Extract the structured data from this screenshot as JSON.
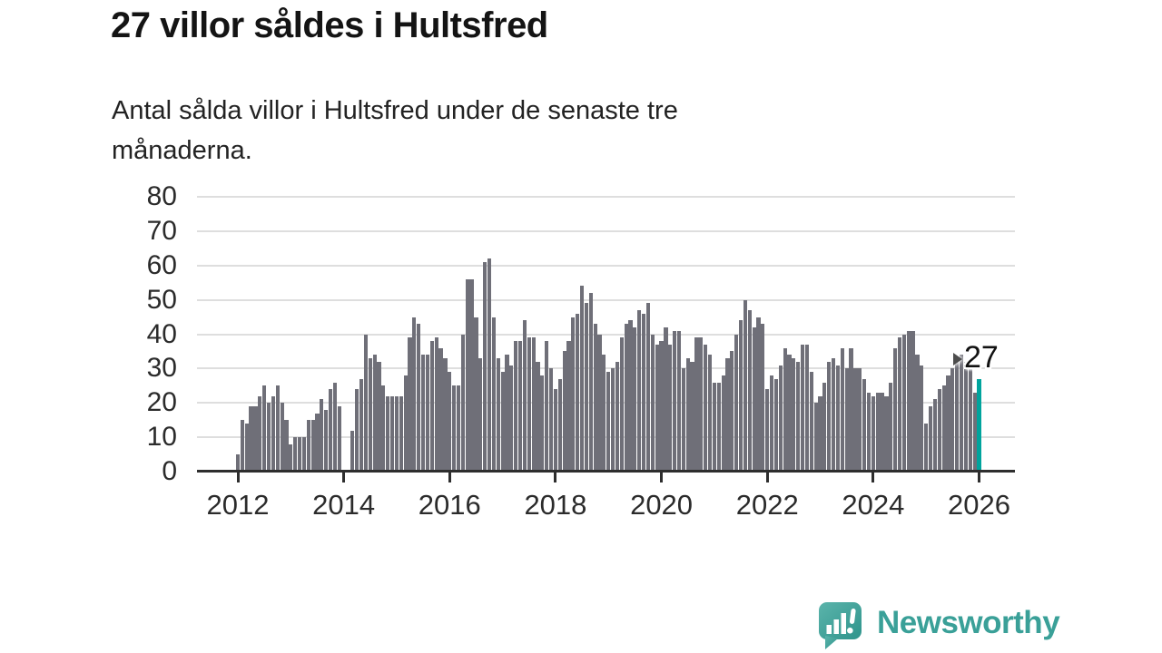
{
  "header": {
    "title": "27 villor såldes i Hultsfred",
    "subtitle_lines": [
      "Antal sålda villor i Hultsfred under de senaste tre",
      "månaderna."
    ]
  },
  "annotation": {
    "value_label": "27",
    "arrow_icon": "right-arrowhead-icon"
  },
  "branding": {
    "name": "Newsworthy",
    "icon": "chart-speech-bubble-icon"
  },
  "colors": {
    "bar": "#6f6f78",
    "highlight": "#00a49d",
    "grid": "#dedede",
    "axis": "#2e2e2e",
    "brand_teal": "#3aa098",
    "title_text": "#141414",
    "body_text": "#232323"
  },
  "chart_data": {
    "type": "bar",
    "title": "27 villor såldes i Hultsfred",
    "subtitle": "Antal sålda villor i Hultsfred under de senaste tre månaderna.",
    "frequency": "monthly",
    "x_start": "2012-01",
    "x_end": "2026-01",
    "xticks": [
      "2012",
      "2014",
      "2016",
      "2018",
      "2020",
      "2022",
      "2024",
      "2026"
    ],
    "yticks": [
      0,
      10,
      20,
      30,
      40,
      50,
      60,
      70,
      80
    ],
    "ylim": [
      0,
      80
    ],
    "grid": "horizontal",
    "legend": "none",
    "highlight_last": true,
    "last_value": 27,
    "values": [
      5,
      15,
      14,
      19,
      19,
      22,
      25,
      20,
      22,
      25,
      20,
      15,
      8,
      10,
      10,
      10,
      15,
      15,
      17,
      21,
      18,
      24,
      26,
      19,
      0,
      0,
      12,
      24,
      27,
      40,
      33,
      34,
      32,
      25,
      22,
      22,
      22,
      22,
      28,
      39,
      45,
      43,
      34,
      34,
      38,
      39,
      36,
      33,
      29,
      25,
      25,
      40,
      56,
      56,
      45,
      33,
      61,
      62,
      45,
      33,
      29,
      34,
      31,
      38,
      38,
      44,
      39,
      39,
      32,
      28,
      38,
      30,
      24,
      27,
      35,
      38,
      45,
      46,
      54,
      49,
      52,
      43,
      40,
      34,
      29,
      30,
      32,
      39,
      43,
      44,
      42,
      47,
      46,
      49,
      40,
      37,
      38,
      42,
      37,
      41,
      41,
      30,
      33,
      32,
      39,
      39,
      37,
      34,
      26,
      26,
      28,
      33,
      35,
      40,
      44,
      50,
      47,
      42,
      45,
      43,
      24,
      28,
      27,
      31,
      36,
      34,
      33,
      32,
      37,
      37,
      29,
      20,
      22,
      26,
      32,
      33,
      31,
      36,
      30,
      36,
      30,
      30,
      27,
      23,
      22,
      23,
      23,
      22,
      26,
      36,
      39,
      40,
      41,
      41,
      34,
      31,
      14,
      19,
      21,
      24,
      25,
      28,
      30,
      32,
      34,
      32,
      30,
      23,
      27
    ]
  }
}
